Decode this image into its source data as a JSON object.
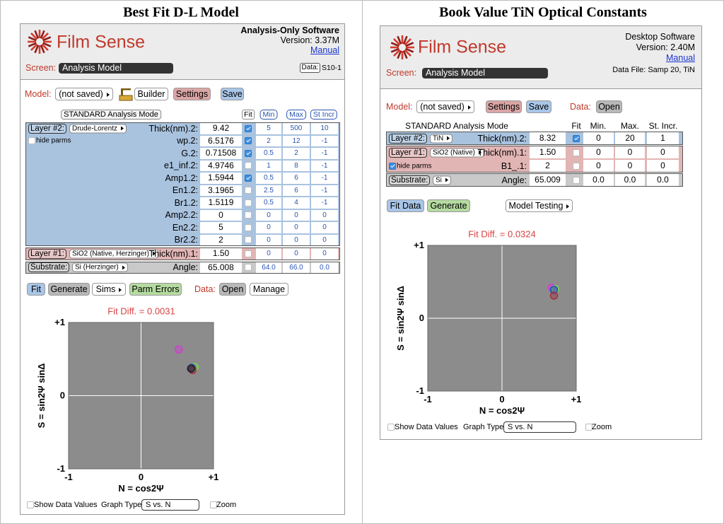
{
  "left": {
    "title": "Best Fit D-L Model",
    "brand": "Film Sense",
    "software": "Analysis-Only Software",
    "version": "Version: 3.37M",
    "manual": "Manual",
    "screen_label": "Screen:",
    "screen_value": "Analysis Model",
    "data_button": "Data:",
    "data_file": "S10-1",
    "model_label": "Model:",
    "model_value": "(not saved)",
    "builder": "Builder",
    "settings": "Settings",
    "save": "Save",
    "mode": "STANDARD Analysis Mode",
    "columns": [
      "Fit",
      "Min",
      "Max",
      "St Incr"
    ],
    "layers": [
      {
        "label": "Layer #2:",
        "material": "Drude-Lorentz",
        "color": "#a9c3df",
        "hide_parms": "hide parms",
        "hide_checked": false,
        "rows": [
          [
            "Thick(nm).2:",
            "9.42",
            true,
            "5",
            "500",
            "10"
          ],
          [
            "wp.2:",
            "6.5176",
            true,
            "2",
            "12",
            "-1"
          ],
          [
            "G.2:",
            "0.71508",
            true,
            "0.5",
            "2",
            "-1"
          ],
          [
            "e1_inf.2:",
            "4.9746",
            false,
            "1",
            "8",
            "-1"
          ],
          [
            "Amp1.2:",
            "1.5944",
            true,
            "0.5",
            "6",
            "-1"
          ],
          [
            "En1.2:",
            "3.1965",
            false,
            "2.5",
            "6",
            "-1"
          ],
          [
            "Br1.2:",
            "1.5119",
            false,
            "0.5",
            "4",
            "-1"
          ],
          [
            "Amp2.2:",
            "0",
            false,
            "0",
            "0",
            "0"
          ],
          [
            "En2.2:",
            "5",
            false,
            "0",
            "0",
            "0"
          ],
          [
            "Br2.2:",
            "2",
            false,
            "0",
            "0",
            "0"
          ]
        ]
      },
      {
        "label": "Layer #1:",
        "material": "SiO2 (Native, Herzinger)",
        "color": "#e2b5b5",
        "rows": [
          [
            "Thick(nm).1:",
            "1.50",
            false,
            "0",
            "0",
            "0"
          ]
        ]
      },
      {
        "label": "Substrate:",
        "material": "Si (Herzinger)",
        "color": "#c9c9c9",
        "rows": [
          [
            "Angle:",
            "65.008",
            false,
            "64.0",
            "66.0",
            "0.0"
          ]
        ]
      }
    ],
    "buttons": [
      "Fit",
      "Generate",
      "Sims",
      "Parm Errors"
    ],
    "data_label": "Data:",
    "data_buttons": [
      "Open",
      "Manage"
    ],
    "fit_diff": "Fit Diff. = 0.0031",
    "plot": {
      "xlabel": "N = cos2Ψ",
      "ylabel": "S = sin2Ψ sinΔ",
      "xlim": [
        -1,
        1
      ],
      "ylim": [
        -1,
        1
      ],
      "xticks": [
        -1,
        0,
        {
          "value": 1,
          "label": "+1"
        }
      ],
      "yticks": [
        -1,
        0,
        {
          "value": 1,
          "label": "+1"
        }
      ],
      "points": [
        {
          "x": 0.52,
          "y": 0.63,
          "color": "#d040d0"
        },
        {
          "x": 0.74,
          "y": 0.39,
          "color": "#7cd050"
        },
        {
          "x": 0.7,
          "y": 0.38,
          "color": "#2050c0"
        },
        {
          "x": 0.71,
          "y": 0.35,
          "color": "#a03040"
        },
        {
          "x": 0.69,
          "y": 0.37,
          "color": "#202020"
        }
      ]
    },
    "footer": {
      "show_values": "Show Data Values",
      "graph_type_label": "Graph Type:",
      "graph_type": "S vs. N",
      "zoom": "Zoom"
    }
  },
  "right": {
    "title": "Book Value TiN Optical Constants",
    "brand": "Film Sense",
    "software": "Desktop Software",
    "version": "Version: 2.40M",
    "manual": "Manual",
    "screen_label": "Screen:",
    "screen_value": "Analysis Model",
    "data_file": "Data File: Samp 20, TiN",
    "model_label": "Model:",
    "model_value": "(not saved)",
    "settings": "Settings",
    "save": "Save",
    "data_label": "Data:",
    "open": "Open",
    "mode": "STANDARD Analysis Mode",
    "columns": [
      "Fit",
      "Min.",
      "Max.",
      "St. Incr."
    ],
    "layers": [
      {
        "label": "Layer #2:",
        "material": "TiN",
        "color": "#a9c3df",
        "rows": [
          [
            "Thick(nm).2:",
            "8.32",
            true,
            "0",
            "20",
            "1"
          ]
        ]
      },
      {
        "label": "Layer #1:",
        "material": "SiO2 (Native)",
        "color": "#e2b5b5",
        "hide_parms": "hide parms",
        "hide_checked": true,
        "rows": [
          [
            "Thick(nm).1:",
            "1.50",
            false,
            "0",
            "0",
            "0"
          ],
          [
            "B1_.1:",
            "2",
            false,
            "0",
            "0",
            "0"
          ]
        ]
      },
      {
        "label": "Substrate:",
        "material": "Si",
        "color": "#c9c9c9",
        "rows": [
          [
            "Angle:",
            "65.009",
            false,
            "0.0",
            "0.0",
            "0.0"
          ]
        ]
      }
    ],
    "buttons": [
      "Fit Data",
      "Generate",
      "Model Testing"
    ],
    "fit_diff": "Fit Diff. = 0.0324",
    "plot": {
      "xlabel": "N = cos2Ψ",
      "ylabel": "S = sin2Ψ sinΔ",
      "xlim": [
        -1,
        1
      ],
      "ylim": [
        -1,
        1
      ],
      "xticks": [
        -1,
        0,
        {
          "value": 1,
          "label": "+1"
        }
      ],
      "yticks": [
        -1,
        0,
        {
          "value": 1,
          "label": "+1"
        }
      ],
      "points": [
        {
          "x": 0.67,
          "y": 0.42,
          "color": "#d040d0"
        },
        {
          "x": 0.72,
          "y": 0.4,
          "color": "#7cd050"
        },
        {
          "x": 0.7,
          "y": 0.39,
          "color": "#2050c0"
        },
        {
          "x": 0.7,
          "y": 0.31,
          "color": "#a03040"
        }
      ]
    },
    "footer": {
      "show_values": "Show Data Values",
      "graph_type_label": "Graph Type:",
      "graph_type": "S vs. N",
      "zoom": "Zoom"
    }
  }
}
